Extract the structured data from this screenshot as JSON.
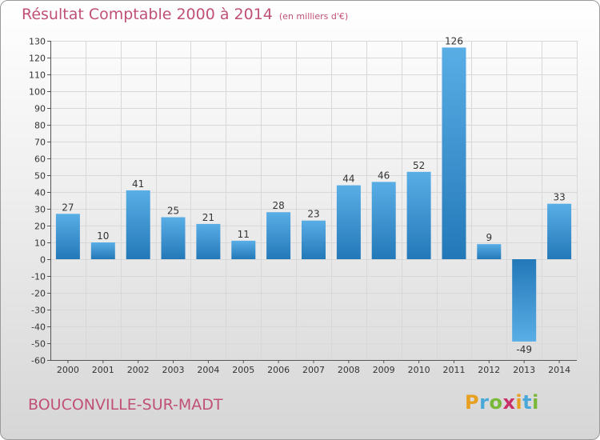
{
  "header": {
    "title": "Résultat Comptable 2000 à 2014",
    "subtitle": "(en milliers d'€)"
  },
  "footer": {
    "commune": "BOUCONVILLE-SUR-MADT",
    "logo_letters": [
      "P",
      "r",
      "o",
      "x",
      "i",
      "t",
      "i"
    ],
    "logo_colors": [
      "#e8a020",
      "#4aa8d8",
      "#7ab83a",
      "#c8306a",
      "#e8a020",
      "#4aa8d8",
      "#7ab83a"
    ]
  },
  "chart_data": {
    "type": "bar",
    "title": "Résultat Comptable 2000 à 2014",
    "subtitle": "(en milliers d'€)",
    "categories": [
      "2000",
      "2001",
      "2002",
      "2003",
      "2004",
      "2005",
      "2006",
      "2007",
      "2008",
      "2009",
      "2010",
      "2011",
      "2012",
      "2013",
      "2014"
    ],
    "values": [
      27,
      10,
      41,
      25,
      21,
      11,
      28,
      23,
      44,
      46,
      52,
      126,
      9,
      -49,
      33
    ],
    "ylim": [
      -60,
      130
    ],
    "yticks": [
      130,
      120,
      110,
      100,
      90,
      80,
      70,
      60,
      50,
      40,
      30,
      20,
      10,
      0,
      -10,
      -20,
      -30,
      -40,
      -50,
      -60
    ],
    "grid": true,
    "colors": {
      "bar_light": "#5aaee6",
      "bar_dark": "#2378b8",
      "grid": "#d8d8d8",
      "axis": "#555555"
    }
  }
}
